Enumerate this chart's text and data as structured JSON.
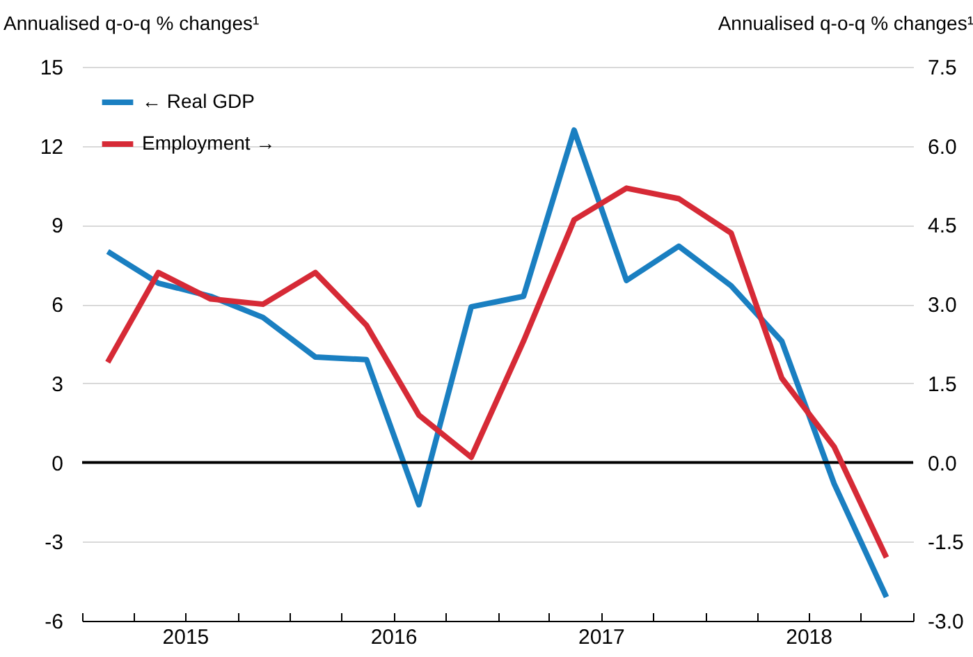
{
  "chart_data": {
    "type": "line",
    "ylabel": "Annualised q-o-q % changes¹",
    "y2label": "Annualised q-o-q % changes¹",
    "x": [
      "2015-02-15",
      "2015-05-15",
      "2015-08-15",
      "2015-11-15",
      "2016-02-15",
      "2016-05-15",
      "2016-08-15",
      "2016-11-15",
      "2017-02-15",
      "2017-05-15",
      "2017-08-15",
      "2017-11-15",
      "2018-02-15",
      "2018-05-15",
      "2018-08-15",
      "2018-11-15"
    ],
    "series": [
      {
        "name": "← Real GDP",
        "color": "#1a7fc1",
        "values": [
          8.0,
          6.8,
          6.3,
          5.5,
          4.0,
          3.9,
          -1.6,
          5.9,
          6.3,
          12.6,
          6.9,
          8.2,
          6.7,
          4.6,
          -0.8,
          -5.1
        ]
      },
      {
        "name": "Employment →",
        "color": "#d62a36",
        "axis": "y2",
        "values": [
          1.9,
          3.6,
          3.1,
          3.0,
          3.6,
          2.6,
          0.9,
          0.1,
          2.3,
          4.6,
          5.2,
          5.0,
          4.35,
          1.6,
          0.3,
          -1.8
        ]
      }
    ],
    "xlim": [
      "2015-01-01",
      "2019-01-01"
    ],
    "xticks": [
      {
        "value": "2015-01-01",
        "label": null
      },
      {
        "value": "2015-04-01",
        "label": null
      },
      {
        "value": "2015-07-01",
        "label": "2015"
      },
      {
        "value": "2015-10-01",
        "label": null
      },
      {
        "value": "2016-01-01",
        "label": null
      },
      {
        "value": "2016-04-01",
        "label": null
      },
      {
        "value": "2016-07-01",
        "label": "2016"
      },
      {
        "value": "2016-10-01",
        "label": null
      },
      {
        "value": "2017-01-01",
        "label": null
      },
      {
        "value": "2017-04-01",
        "label": null
      },
      {
        "value": "2017-07-01",
        "label": "2017"
      },
      {
        "value": "2017-10-01",
        "label": null
      },
      {
        "value": "2018-01-01",
        "label": null
      },
      {
        "value": "2018-04-01",
        "label": null
      },
      {
        "value": "2018-07-01",
        "label": "2018"
      },
      {
        "value": "2018-10-01",
        "label": null
      },
      {
        "value": "2019-01-01",
        "label": null
      }
    ],
    "ylim": [
      -6,
      15
    ],
    "yticks": [
      -6,
      -3,
      0,
      3,
      6,
      9,
      12,
      15
    ],
    "y2lim": [
      -3,
      7.5
    ],
    "y2ticks": [
      {
        "value": -3,
        "label": "-3.0"
      },
      {
        "value": -1.5,
        "label": "-1.5"
      },
      {
        "value": 0,
        "label": "0.0"
      },
      {
        "value": 1.5,
        "label": "1.5"
      },
      {
        "value": 3,
        "label": "3.0"
      },
      {
        "value": 4.5,
        "label": "4.5"
      },
      {
        "value": 6,
        "label": "6.0"
      },
      {
        "value": 7.5,
        "label": "7.5"
      }
    ],
    "ref_lines": [
      {
        "axis": "y",
        "value": 0,
        "color": "#000000"
      }
    ],
    "grid": "y",
    "legend": "top left",
    "line_style": "solid"
  }
}
